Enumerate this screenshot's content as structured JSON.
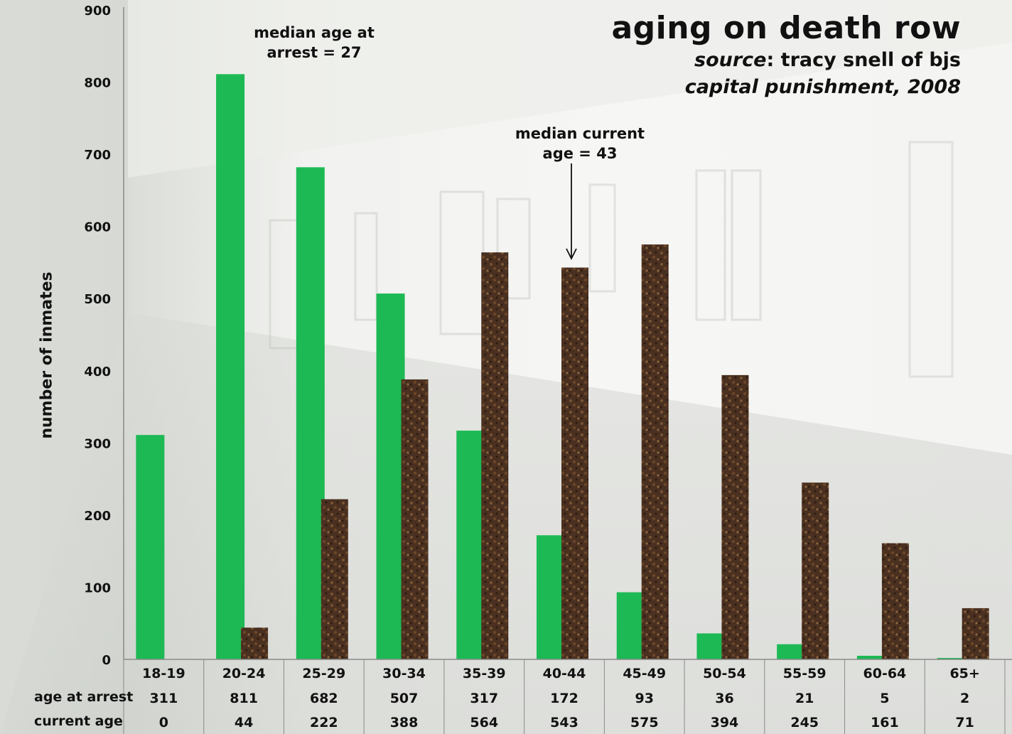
{
  "chart_data": {
    "type": "bar",
    "title": "aging on death row",
    "source_label": "source",
    "source_text": ": tracy snell of bjs",
    "publication": "capital punishment, 2008",
    "ylabel": "number of inmates",
    "ylim": [
      0,
      900
    ],
    "yticks": [
      0,
      100,
      200,
      300,
      400,
      500,
      600,
      700,
      800,
      900
    ],
    "categories": [
      "18-19",
      "20-24",
      "25-29",
      "30-34",
      "35-39",
      "40-44",
      "45-49",
      "50-54",
      "55-59",
      "60-64",
      "65+"
    ],
    "series": [
      {
        "name": "age at arrest",
        "color": "#1db954",
        "values": [
          311,
          811,
          682,
          507,
          317,
          172,
          93,
          36,
          21,
          5,
          2
        ]
      },
      {
        "name": "current age",
        "color": "#4a3020",
        "values": [
          0,
          44,
          222,
          388,
          564,
          543,
          575,
          394,
          245,
          161,
          71
        ]
      }
    ],
    "annotations": [
      {
        "line1": "median age at",
        "line2": "arrest = 27"
      },
      {
        "line1": "median current",
        "line2": "age = 43"
      }
    ],
    "grid": false,
    "legend": "table below chart"
  }
}
